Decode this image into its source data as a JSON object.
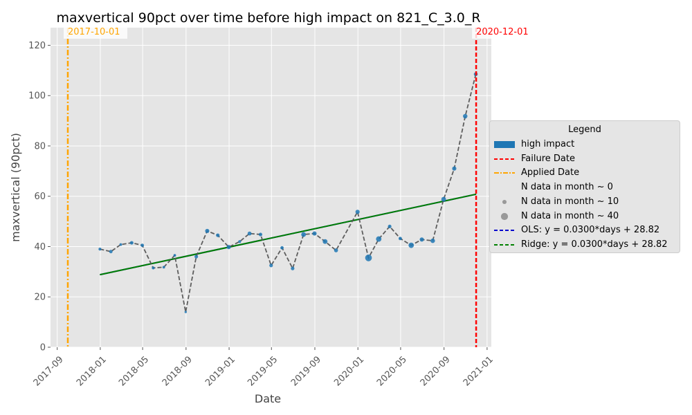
{
  "chart_data": {
    "type": "line",
    "title": "maxvertical 90pct over time before high impact on 821_C_3.0_R",
    "xlabel": "Date",
    "ylabel": "maxvertical (90pct)",
    "x_axis_type": "date",
    "xlim": [
      "2017-08-13",
      "2021-01-13"
    ],
    "ylim": [
      0,
      127
    ],
    "x_ticks": [
      "2017-09-01",
      "2018-01-01",
      "2018-05-01",
      "2018-09-01",
      "2019-01-01",
      "2019-05-01",
      "2019-09-01",
      "2020-01-01",
      "2020-05-01",
      "2020-09-01",
      "2021-01-01"
    ],
    "x_tick_labels": [
      "2017-09",
      "2018-01",
      "2018-05",
      "2018-09",
      "2019-01",
      "2019-05",
      "2019-09",
      "2020-01",
      "2020-05",
      "2020-09",
      "2021-01"
    ],
    "y_ticks": [
      0,
      20,
      40,
      60,
      80,
      100,
      120
    ],
    "grid": true,
    "background": "#e5e5e5",
    "series": [
      {
        "name": "high impact",
        "color": "#1f77b4",
        "line_color": "#555555",
        "line_style": "dashed",
        "points": [
          {
            "x": "2017-12-31",
            "y": 39.0,
            "n": 3
          },
          {
            "x": "2018-01-31",
            "y": 38.0,
            "n": 5
          },
          {
            "x": "2018-02-28",
            "y": 40.8,
            "n": 2
          },
          {
            "x": "2018-03-31",
            "y": 41.5,
            "n": 6
          },
          {
            "x": "2018-04-30",
            "y": 40.5,
            "n": 5
          },
          {
            "x": "2018-05-31",
            "y": 31.5,
            "n": 3
          },
          {
            "x": "2018-06-30",
            "y": 31.8,
            "n": 2
          },
          {
            "x": "2018-07-31",
            "y": 36.5,
            "n": 2
          },
          {
            "x": "2018-08-31",
            "y": 14.0,
            "n": 1
          },
          {
            "x": "2018-09-30",
            "y": 36.0,
            "n": 6
          },
          {
            "x": "2018-10-31",
            "y": 46.2,
            "n": 10
          },
          {
            "x": "2018-11-30",
            "y": 44.5,
            "n": 6
          },
          {
            "x": "2018-12-31",
            "y": 39.8,
            "n": 10
          },
          {
            "x": "2019-01-31",
            "y": 42.0,
            "n": 3
          },
          {
            "x": "2019-02-28",
            "y": 45.2,
            "n": 8
          },
          {
            "x": "2019-03-31",
            "y": 44.8,
            "n": 6
          },
          {
            "x": "2019-04-30",
            "y": 32.5,
            "n": 6
          },
          {
            "x": "2019-05-31",
            "y": 39.5,
            "n": 5
          },
          {
            "x": "2019-06-30",
            "y": 31.3,
            "n": 6
          },
          {
            "x": "2019-07-31",
            "y": 44.8,
            "n": 14
          },
          {
            "x": "2019-08-31",
            "y": 45.2,
            "n": 10
          },
          {
            "x": "2019-09-30",
            "y": 42.0,
            "n": 14
          },
          {
            "x": "2019-10-31",
            "y": 38.5,
            "n": 8
          },
          {
            "x": "2019-12-31",
            "y": 53.8,
            "n": 10
          },
          {
            "x": "2020-01-31",
            "y": 35.5,
            "n": 35
          },
          {
            "x": "2020-02-29",
            "y": 43.0,
            "n": 20
          },
          {
            "x": "2020-03-31",
            "y": 48.0,
            "n": 6
          },
          {
            "x": "2020-04-30",
            "y": 43.2,
            "n": 5
          },
          {
            "x": "2020-05-31",
            "y": 40.5,
            "n": 20
          },
          {
            "x": "2020-06-30",
            "y": 42.8,
            "n": 10
          },
          {
            "x": "2020-07-31",
            "y": 42.3,
            "n": 12
          },
          {
            "x": "2020-08-31",
            "y": 58.8,
            "n": 14
          },
          {
            "x": "2020-09-30",
            "y": 71.0,
            "n": 10
          },
          {
            "x": "2020-10-31",
            "y": 91.8,
            "n": 12
          },
          {
            "x": "2020-11-30",
            "y": 108.5,
            "n": 8
          }
        ]
      }
    ],
    "regression": {
      "x_start": "2017-12-31",
      "x_end": "2020-12-01",
      "ols": {
        "label": "OLS: y = 0.0300*days + 28.82",
        "slope_per_day": 0.03,
        "intercept": 28.82,
        "color": "#0000cc"
      },
      "ridge": {
        "label": "Ridge: y = 0.0300*days + 28.82",
        "slope_per_day": 0.03,
        "intercept": 28.82,
        "color": "#008000"
      }
    },
    "vlines": [
      {
        "name": "Applied Date",
        "x": "2017-10-01",
        "label": "2017-10-01",
        "color": "#ffa500",
        "style": "dashdot"
      },
      {
        "name": "Failure Date",
        "x": "2020-12-01",
        "label": "2020-12-01",
        "color": "#ff0000",
        "style": "dashed"
      }
    ],
    "legend": {
      "title": "Legend",
      "placement": "center-right outside",
      "entries": [
        {
          "label": "high impact",
          "kind": "patch",
          "color": "#1f77b4"
        },
        {
          "label": "Failure Date",
          "kind": "line",
          "color": "#ff0000",
          "style": "dashed"
        },
        {
          "label": "Applied Date",
          "kind": "line",
          "color": "#ffa500",
          "style": "dashdot"
        },
        {
          "label": "N data in month ~ 0",
          "kind": "marker",
          "size": 0,
          "color": "#999999"
        },
        {
          "label": "N data in month ~ 10",
          "kind": "marker",
          "size": 10,
          "color": "#999999"
        },
        {
          "label": "N data in month ~ 40",
          "kind": "marker",
          "size": 40,
          "color": "#999999"
        },
        {
          "label": "OLS: y = 0.0300*days + 28.82",
          "kind": "line",
          "color": "#0000cc",
          "style": "dashed"
        },
        {
          "label": "Ridge: y = 0.0300*days + 28.82",
          "kind": "line",
          "color": "#008000",
          "style": "dashed"
        }
      ]
    }
  }
}
